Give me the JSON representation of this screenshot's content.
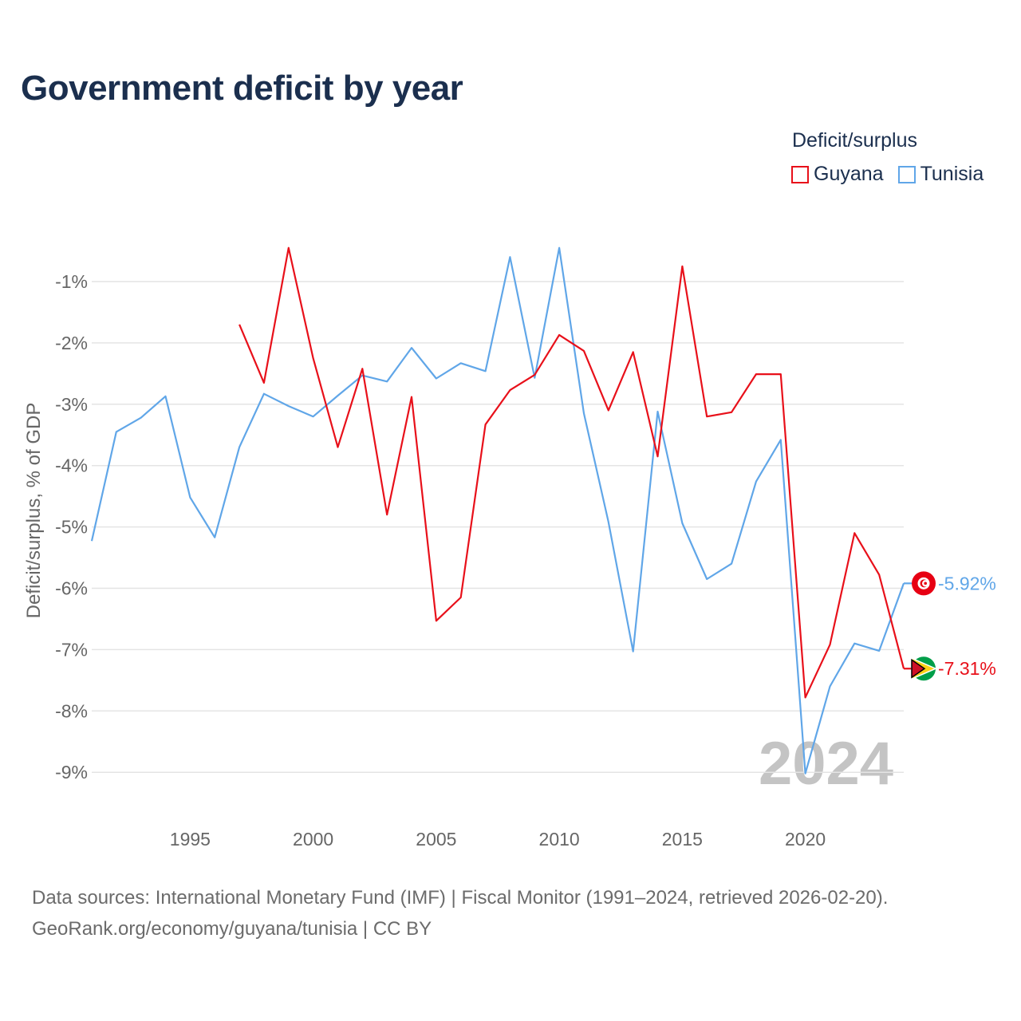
{
  "title": "Government deficit by year",
  "legend": {
    "title": "Deficit/surplus",
    "items": [
      {
        "label": "Guyana",
        "color": "#e8101a"
      },
      {
        "label": "Tunisia",
        "color": "#60a6e8"
      }
    ]
  },
  "year_label": "2024",
  "footer": {
    "line1": "Data sources: International Monetary Fund (IMF) | Fiscal Monitor (1991–2024, retrieved 2026-02-20).",
    "line2": "GeoRank.org/economy/guyana/tunisia | CC BY"
  },
  "chart_data": {
    "type": "line",
    "title": "Government deficit by year",
    "xlabel": "",
    "ylabel": "Deficit/surplus, % of GDP",
    "xlim": [
      1991,
      2024
    ],
    "ylim": [
      -9.5,
      -0.3
    ],
    "grid": true,
    "legend_position": "top-right",
    "x_ticks": [
      1995,
      2000,
      2005,
      2010,
      2015,
      2020
    ],
    "x_tick_labels": [
      "1995",
      "2000",
      "2005",
      "2010",
      "2015",
      "2020"
    ],
    "y_ticks": [
      -1,
      -2,
      -3,
      -4,
      -5,
      -6,
      -7,
      -8,
      -9
    ],
    "y_tick_labels": [
      "-1%",
      "-2%",
      "-3%",
      "-4%",
      "-5%",
      "-6%",
      "-7%",
      "-8%",
      "-9%"
    ],
    "series": [
      {
        "name": "Guyana",
        "color": "#e8101a",
        "end_label": "-7.31%",
        "flag_icon": "guyana-flag-icon",
        "points": [
          [
            1997,
            -1.7
          ],
          [
            1998,
            -2.65
          ],
          [
            1999,
            -0.45
          ],
          [
            2000,
            -2.25
          ],
          [
            2001,
            -3.7
          ],
          [
            2002,
            -2.42
          ],
          [
            2003,
            -4.8
          ],
          [
            2004,
            -2.88
          ],
          [
            2005,
            -6.53
          ],
          [
            2006,
            -6.15
          ],
          [
            2007,
            -3.33
          ],
          [
            2008,
            -2.77
          ],
          [
            2009,
            -2.52
          ],
          [
            2010,
            -1.87
          ],
          [
            2011,
            -2.13
          ],
          [
            2012,
            -3.1
          ],
          [
            2013,
            -2.15
          ],
          [
            2014,
            -3.85
          ],
          [
            2015,
            -0.75
          ],
          [
            2016,
            -3.2
          ],
          [
            2017,
            -3.13
          ],
          [
            2018,
            -2.51
          ],
          [
            2019,
            -2.51
          ],
          [
            2020,
            -7.78
          ],
          [
            2021,
            -6.92
          ],
          [
            2022,
            -5.1
          ],
          [
            2023,
            -5.78
          ],
          [
            2024,
            -7.31
          ]
        ]
      },
      {
        "name": "Tunisia",
        "color": "#60a6e8",
        "end_label": "-5.92%",
        "flag_icon": "tunisia-flag-icon",
        "points": [
          [
            1991,
            -5.23
          ],
          [
            1992,
            -3.45
          ],
          [
            1993,
            -3.22
          ],
          [
            1994,
            -2.87
          ],
          [
            1995,
            -4.52
          ],
          [
            1996,
            -5.17
          ],
          [
            1997,
            -3.7
          ],
          [
            1998,
            -2.83
          ],
          [
            1999,
            -3.03
          ],
          [
            2000,
            -3.2
          ],
          [
            2001,
            -2.86
          ],
          [
            2002,
            -2.53
          ],
          [
            2003,
            -2.63
          ],
          [
            2004,
            -2.08
          ],
          [
            2005,
            -2.58
          ],
          [
            2006,
            -2.33
          ],
          [
            2007,
            -2.46
          ],
          [
            2008,
            -0.6
          ],
          [
            2009,
            -2.57
          ],
          [
            2010,
            -0.45
          ],
          [
            2011,
            -3.15
          ],
          [
            2012,
            -4.92
          ],
          [
            2013,
            -7.03
          ],
          [
            2014,
            -3.12
          ],
          [
            2015,
            -4.94
          ],
          [
            2016,
            -5.85
          ],
          [
            2017,
            -5.6
          ],
          [
            2018,
            -4.26
          ],
          [
            2019,
            -3.58
          ],
          [
            2020,
            -9.02
          ],
          [
            2021,
            -7.6
          ],
          [
            2022,
            -6.9
          ],
          [
            2023,
            -7.02
          ],
          [
            2024,
            -5.92
          ]
        ]
      }
    ]
  }
}
